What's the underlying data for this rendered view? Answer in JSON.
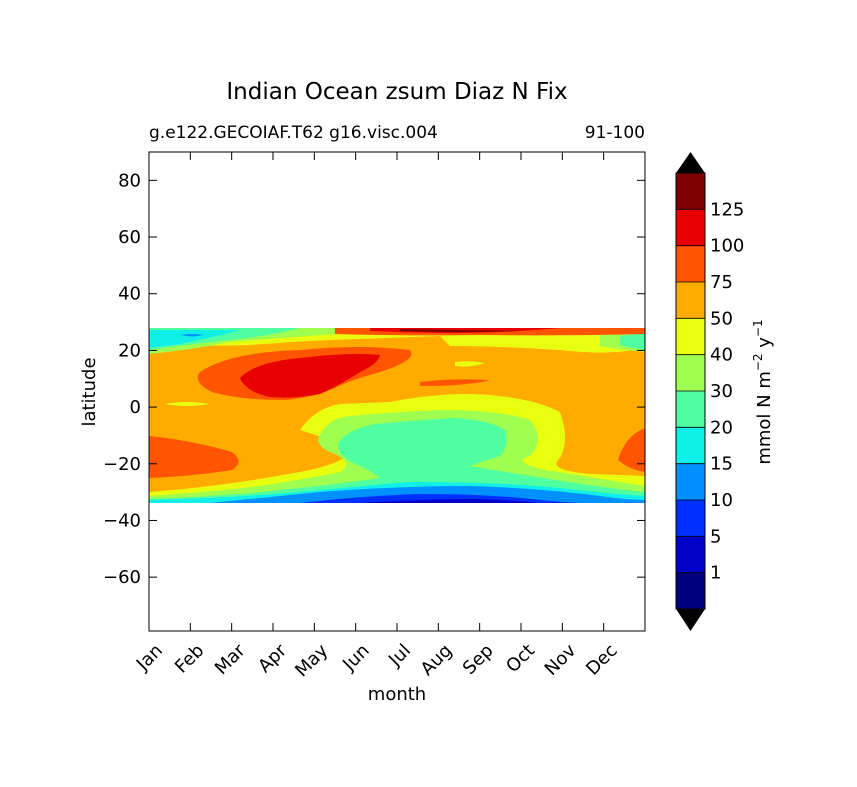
{
  "chart_data": {
    "type": "contour",
    "title": "Indian Ocean zsum Diaz N Fix",
    "subtitle_left": "g.e122.GECOIAF.T62 g16.visc.004",
    "subtitle_right": "91-100",
    "xlabel": "month",
    "ylabel": "latitude",
    "x_ticks": [
      "Jan",
      "Feb",
      "Mar",
      "Apr",
      "May",
      "Jun",
      "Jul",
      "Aug",
      "Sep",
      "Oct",
      "Nov",
      "Dec"
    ],
    "y_ticks": [
      "80",
      "60",
      "40",
      "20",
      "0",
      "−20",
      "−40",
      "−60"
    ],
    "y_tick_values": [
      80,
      60,
      40,
      20,
      0,
      -20,
      -40,
      -60
    ],
    "ylim": [
      -79,
      90
    ],
    "data_lat_range": [
      -34,
      27
    ],
    "colorbar": {
      "label_main": "mmol N m",
      "label_sup1": "−2",
      "label_mid": " y",
      "label_sup2": "−1",
      "levels": [
        "1",
        "5",
        "10",
        "15",
        "20",
        "30",
        "40",
        "50",
        "75",
        "100",
        "125"
      ],
      "colors": [
        "#00007f",
        "#0000c8",
        "#0030ff",
        "#0090ff",
        "#10f0e8",
        "#50ff9f",
        "#9fff50",
        "#e8ff10",
        "#ffab00",
        "#ff5500",
        "#e80000",
        "#7f0000"
      ],
      "extend": "both"
    },
    "regions": [
      {
        "level": "50-75",
        "color": "#ffab00",
        "desc": "background band -29 to 20"
      },
      {
        "level": "75-100",
        "color": "#ff5500",
        "desc": "Apr-Jun 2 to 19N; Jan-Feb and Dec -13 to -25"
      },
      {
        "level": "100-125",
        "color": "#e80000",
        "desc": "Apr-May 3 to 16N; Jun-Aug near 26N"
      },
      {
        "level": "30-40",
        "color": "#50ff9f",
        "desc": "Jun-Sep -3 to -24S"
      },
      {
        "level": "40-50",
        "color": "#9fff50",
        "desc": "surrounding southern low"
      },
      {
        "level": "5-15",
        "color": "#0030ff",
        "desc": "southern edge -30 to -34S"
      }
    ]
  }
}
